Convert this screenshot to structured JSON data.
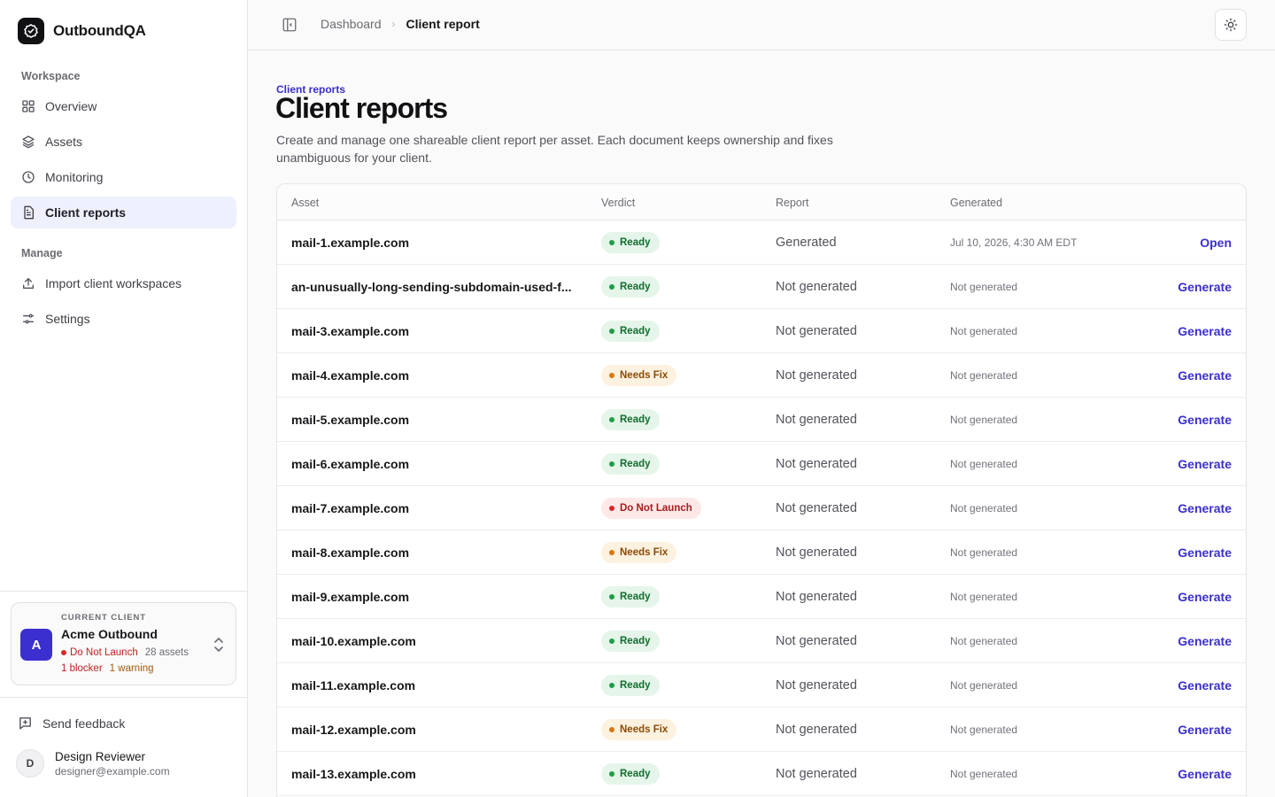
{
  "brand": {
    "name": "OutboundQA"
  },
  "sidebar": {
    "workspace_label": "Workspace",
    "manage_label": "Manage",
    "workspace_items": [
      {
        "label": "Overview",
        "icon": "grid-icon"
      },
      {
        "label": "Assets",
        "icon": "layers-icon"
      },
      {
        "label": "Monitoring",
        "icon": "clock-icon"
      },
      {
        "label": "Client reports",
        "icon": "document-icon",
        "active": true
      }
    ],
    "manage_items": [
      {
        "label": "Import client workspaces",
        "icon": "upload-icon"
      },
      {
        "label": "Settings",
        "icon": "sliders-icon"
      }
    ],
    "current_client": {
      "eyebrow": "CURRENT CLIENT",
      "avatar": "A",
      "name": "Acme Outbound",
      "status": "Do Not Launch",
      "assets": "28 assets",
      "blockers": "1 blocker",
      "warnings": "1 warning"
    },
    "feedback_label": "Send feedback",
    "user": {
      "avatar": "D",
      "name": "Design Reviewer",
      "email": "designer@example.com"
    }
  },
  "header": {
    "breadcrumb_root": "Dashboard",
    "breadcrumb_current": "Client report"
  },
  "main": {
    "eyebrow": "Client reports",
    "title": "Client reports",
    "description": "Create and manage one shareable client report per asset. Each document keeps ownership and fixes unambiguous for your client."
  },
  "table": {
    "columns": {
      "asset": "Asset",
      "verdict": "Verdict",
      "report": "Report",
      "generated": "Generated"
    },
    "rows": [
      {
        "asset": "mail-1.example.com",
        "verdict": "Ready",
        "verdict_kind": "ready",
        "report": "Generated",
        "generated": "Jul 10, 2026, 4:30 AM EDT",
        "action": "Open"
      },
      {
        "asset": "an-unusually-long-sending-subdomain-used-f...",
        "verdict": "Ready",
        "verdict_kind": "ready",
        "report": "Not generated",
        "generated": "Not generated",
        "action": "Generate"
      },
      {
        "asset": "mail-3.example.com",
        "verdict": "Ready",
        "verdict_kind": "ready",
        "report": "Not generated",
        "generated": "Not generated",
        "action": "Generate"
      },
      {
        "asset": "mail-4.example.com",
        "verdict": "Needs Fix",
        "verdict_kind": "fix",
        "report": "Not generated",
        "generated": "Not generated",
        "action": "Generate"
      },
      {
        "asset": "mail-5.example.com",
        "verdict": "Ready",
        "verdict_kind": "ready",
        "report": "Not generated",
        "generated": "Not generated",
        "action": "Generate"
      },
      {
        "asset": "mail-6.example.com",
        "verdict": "Ready",
        "verdict_kind": "ready",
        "report": "Not generated",
        "generated": "Not generated",
        "action": "Generate"
      },
      {
        "asset": "mail-7.example.com",
        "verdict": "Do Not Launch",
        "verdict_kind": "stop",
        "report": "Not generated",
        "generated": "Not generated",
        "action": "Generate"
      },
      {
        "asset": "mail-8.example.com",
        "verdict": "Needs Fix",
        "verdict_kind": "fix",
        "report": "Not generated",
        "generated": "Not generated",
        "action": "Generate"
      },
      {
        "asset": "mail-9.example.com",
        "verdict": "Ready",
        "verdict_kind": "ready",
        "report": "Not generated",
        "generated": "Not generated",
        "action": "Generate"
      },
      {
        "asset": "mail-10.example.com",
        "verdict": "Ready",
        "verdict_kind": "ready",
        "report": "Not generated",
        "generated": "Not generated",
        "action": "Generate"
      },
      {
        "asset": "mail-11.example.com",
        "verdict": "Ready",
        "verdict_kind": "ready",
        "report": "Not generated",
        "generated": "Not generated",
        "action": "Generate"
      },
      {
        "asset": "mail-12.example.com",
        "verdict": "Needs Fix",
        "verdict_kind": "fix",
        "report": "Not generated",
        "generated": "Not generated",
        "action": "Generate"
      },
      {
        "asset": "mail-13.example.com",
        "verdict": "Ready",
        "verdict_kind": "ready",
        "report": "Not generated",
        "generated": "Not generated",
        "action": "Generate"
      }
    ]
  },
  "colors": {
    "accent": "#3b2fcf",
    "ready": "#1f9d46",
    "needs_fix": "#d97706",
    "do_not_launch": "#dc2626"
  }
}
